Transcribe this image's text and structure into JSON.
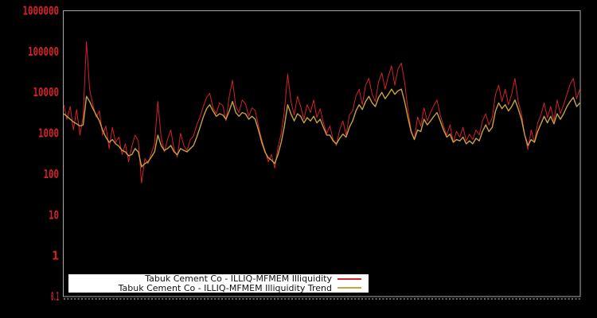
{
  "chart_data": {
    "type": "line",
    "title": "",
    "xlabel": "",
    "ylabel": "",
    "x_axis": {
      "tick_labels_visible": false,
      "ticks": "dense-unlabeled-date-ticks"
    },
    "y_axis": {
      "scale": "log",
      "min": 0.1,
      "max": 1000000,
      "tick_labels": [
        "0.1",
        "1",
        "10",
        "100",
        "1000",
        "10000",
        "100000",
        "1000000"
      ],
      "tick_label_color": "#d2222a"
    },
    "grid": "off",
    "legend": {
      "position": "bottom-center-overlay",
      "background": "#ffffff",
      "entries": [
        {
          "label": "Tabuk Cement Co - ILLIQ-MFMEM Illiquidity",
          "color": "#d2222a"
        },
        {
          "label": "Tabuk Cement Co - ILLIQ-MFMEM Illiquidity Trend",
          "color": "#c9a13f"
        }
      ]
    },
    "colors": {
      "background": "#000000",
      "plot_border": "#aaaaaa"
    },
    "series": [
      {
        "name": "Tabuk Cement Co - ILLIQ-MFMEM Illiquidity",
        "color": "#d2222a",
        "stroke_width": 1,
        "values": [
          5000,
          2200,
          4500,
          1200,
          3800,
          900,
          2600,
          175000,
          12000,
          5000,
          2500,
          3500,
          900,
          1500,
          420,
          1400,
          600,
          800,
          300,
          550,
          200,
          480,
          900,
          650,
          60,
          240,
          180,
          320,
          550,
          6000,
          800,
          350,
          700,
          1200,
          400,
          260,
          1000,
          500,
          380,
          700,
          850,
          1600,
          2500,
          4500,
          7500,
          9500,
          4200,
          3000,
          5500,
          4800,
          2000,
          8000,
          20000,
          4500,
          3200,
          6500,
          5200,
          2600,
          4200,
          3600,
          1500,
          700,
          380,
          200,
          300,
          140,
          450,
          1000,
          3500,
          28000,
          6000,
          2800,
          8000,
          4500,
          2200,
          5000,
          3200,
          6500,
          2400,
          4000,
          1800,
          1000,
          1500,
          700,
          500,
          1200,
          2000,
          900,
          2800,
          3500,
          8000,
          12000,
          5000,
          15000,
          22000,
          9000,
          6000,
          18000,
          30000,
          12000,
          25000,
          45000,
          15000,
          38000,
          52000,
          18000,
          4000,
          1200,
          700,
          2500,
          1500,
          4200,
          2000,
          3200,
          4800,
          6500,
          2800,
          1500,
          900,
          1600,
          600,
          1100,
          800,
          1400,
          650,
          950,
          700,
          1200,
          900,
          2000,
          3000,
          1600,
          2400,
          9000,
          15000,
          6000,
          12000,
          5000,
          9000,
          22000,
          6000,
          3000,
          900,
          400,
          1200,
          600,
          1800,
          2800,
          5500,
          2400,
          4500,
          2000,
          6500,
          3000,
          5000,
          9000,
          16000,
          22000,
          7000,
          12000
        ]
      },
      {
        "name": "Tabuk Cement Co - ILLIQ-MFMEM Illiquidity Trend",
        "color": "#c9a13f",
        "stroke_width": 1.4,
        "values": [
          3000,
          2600,
          2200,
          1900,
          1700,
          1500,
          1600,
          8000,
          6000,
          4000,
          2800,
          2000,
          1200,
          800,
          600,
          700,
          550,
          480,
          380,
          350,
          280,
          300,
          420,
          350,
          150,
          180,
          200,
          260,
          350,
          900,
          500,
          380,
          420,
          500,
          350,
          300,
          420,
          380,
          350,
          420,
          500,
          800,
          1400,
          2500,
          4000,
          5000,
          3500,
          2600,
          3000,
          2800,
          2200,
          3500,
          6000,
          3200,
          2600,
          3200,
          3000,
          2200,
          2600,
          2200,
          1200,
          600,
          350,
          250,
          220,
          180,
          300,
          600,
          1500,
          5000,
          3000,
          2000,
          3000,
          2600,
          1800,
          2400,
          2000,
          2600,
          1800,
          2200,
          1400,
          900,
          900,
          650,
          550,
          750,
          950,
          800,
          1400,
          2000,
          3500,
          5000,
          3800,
          6000,
          8000,
          5500,
          4500,
          7500,
          10000,
          7000,
          9000,
          12000,
          9000,
          11000,
          12000,
          6000,
          2500,
          1100,
          700,
          1200,
          1100,
          2200,
          1600,
          2000,
          2600,
          3200,
          2000,
          1200,
          800,
          950,
          600,
          700,
          650,
          800,
          550,
          650,
          550,
          750,
          650,
          1100,
          1600,
          1100,
          1400,
          3500,
          5500,
          4000,
          5000,
          3500,
          4500,
          6500,
          4000,
          2200,
          900,
          500,
          700,
          600,
          1100,
          1700,
          2600,
          1800,
          2600,
          1700,
          3000,
          2200,
          3000,
          4500,
          6000,
          7500,
          4500,
          5500
        ]
      }
    ]
  }
}
